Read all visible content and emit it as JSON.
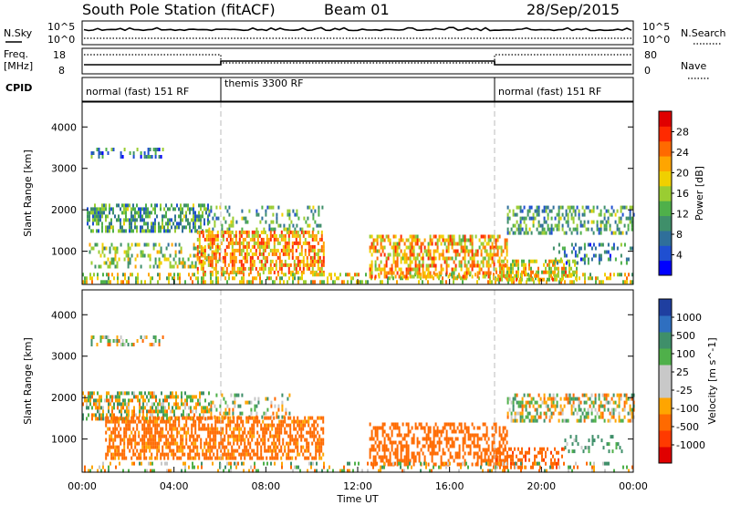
{
  "header": {
    "station": "South Pole Station (fitACF)",
    "beam": "Beam 01",
    "date": "28/Sep/2015"
  },
  "top_panel": {
    "nsky_label": "N.Sky",
    "nsearch_label": "N.Search",
    "noise_ticks": [
      "10^5",
      "10^0"
    ],
    "freq_label": "Freq.",
    "freq_unit": "[MHz]",
    "freq_ticks": [
      "18",
      "8"
    ],
    "nave_label": "Nave",
    "nave_ticks": [
      "80",
      "0"
    ],
    "cpid_label": "CPID",
    "modes": [
      {
        "label": "normal (fast) 151 RF",
        "start_h": 0,
        "end_h": 6
      },
      {
        "label": "themis 3300 RF",
        "start_h": 6,
        "end_h": 18
      },
      {
        "label": "normal (fast) 151 RF",
        "start_h": 18,
        "end_h": 24
      }
    ]
  },
  "x_axis": {
    "label": "Time UT",
    "ticks": [
      "00:00",
      "04:00",
      "08:00",
      "12:00",
      "16:00",
      "20:00",
      "00:00"
    ]
  },
  "chart_data": [
    {
      "type": "heatmap",
      "title": "",
      "xlabel": "Time UT",
      "ylabel": "Slant Range [km]",
      "xlim": [
        0,
        24
      ],
      "ylim": [
        200,
        4600
      ],
      "yticks": [
        1000,
        2000,
        3000,
        4000
      ],
      "colorbar": {
        "label": "Power [dB]",
        "ticks": [
          4,
          8,
          12,
          16,
          20,
          24,
          28
        ],
        "range": [
          0,
          32
        ],
        "colors": [
          "#0000ff",
          "#1f4fd1",
          "#2f6f9a",
          "#3f8f6a",
          "#4fb04a",
          "#9acd32",
          "#f0d000",
          "#ffa500",
          "#ff6a00",
          "#ff2a00",
          "#e00000"
        ]
      },
      "echo_regions": [
        {
          "t0": 0.3,
          "t1": 3.5,
          "r0": 3250,
          "r1": 3500,
          "level": 9,
          "density": 0.35
        },
        {
          "t0": 0.2,
          "t1": 5.5,
          "r0": 1500,
          "r1": 2150,
          "level": 11,
          "density": 0.55
        },
        {
          "t0": 5.5,
          "t1": 10.5,
          "r0": 1550,
          "r1": 2100,
          "level": 12,
          "density": 0.25
        },
        {
          "t0": 0.3,
          "t1": 6.0,
          "r0": 600,
          "r1": 1200,
          "level": 15,
          "density": 0.35
        },
        {
          "t0": 5.0,
          "t1": 10.5,
          "r0": 500,
          "r1": 1500,
          "level": 22,
          "density": 0.6
        },
        {
          "t0": 0.0,
          "t1": 24.0,
          "r0": 250,
          "r1": 480,
          "level": 18,
          "density": 0.35
        },
        {
          "t0": 12.5,
          "t1": 18.5,
          "r0": 350,
          "r1": 1400,
          "level": 21,
          "density": 0.55
        },
        {
          "t0": 18.0,
          "t1": 21.5,
          "r0": 280,
          "r1": 800,
          "level": 20,
          "density": 0.55
        },
        {
          "t0": 18.5,
          "t1": 24.0,
          "r0": 1400,
          "r1": 2100,
          "level": 11,
          "density": 0.45
        },
        {
          "t0": 20.5,
          "t1": 24.0,
          "r0": 700,
          "r1": 1200,
          "level": 9,
          "density": 0.25
        }
      ]
    },
    {
      "type": "heatmap",
      "title": "",
      "xlabel": "Time UT",
      "ylabel": "Slant Range [km]",
      "xlim": [
        0,
        24
      ],
      "ylim": [
        200,
        4600
      ],
      "yticks": [
        1000,
        2000,
        3000,
        4000
      ],
      "colorbar": {
        "label": "Velocity [m s^-1]",
        "ticks": [
          1000,
          500,
          100,
          25,
          -25,
          -100,
          -500,
          -1000
        ],
        "colors": [
          "#1f3fa0",
          "#2f6fc0",
          "#3f8f6a",
          "#4fb04a",
          "#c8c8c8",
          "#c8c8c8",
          "#ffa500",
          "#ff6a00",
          "#ff3a00",
          "#e00000"
        ]
      },
      "echo_regions": [
        {
          "t0": 0.3,
          "t1": 3.5,
          "r0": 3250,
          "r1": 3500,
          "vel": 0,
          "density": 0.35
        },
        {
          "t0": 0.0,
          "t1": 5.5,
          "r0": 1500,
          "r1": 2150,
          "vel": 5,
          "density": 0.55
        },
        {
          "t0": 5.5,
          "t1": 9.0,
          "r0": 1550,
          "r1": 2100,
          "vel": 10,
          "density": 0.25
        },
        {
          "t0": 1.0,
          "t1": 10.5,
          "r0": 550,
          "r1": 1550,
          "vel": -200,
          "density": 0.6
        },
        {
          "t0": 12.5,
          "t1": 18.5,
          "r0": 350,
          "r1": 1400,
          "vel": -250,
          "density": 0.5
        },
        {
          "t0": 18.0,
          "t1": 21.0,
          "r0": 280,
          "r1": 800,
          "vel": -400,
          "density": 0.45
        },
        {
          "t0": 18.5,
          "t1": 24.0,
          "r0": 1400,
          "r1": 2100,
          "vel": 0,
          "density": 0.45
        },
        {
          "t0": 21.0,
          "t1": 23.5,
          "r0": 700,
          "r1": 1100,
          "vel": 150,
          "density": 0.25
        },
        {
          "t0": 0.0,
          "t1": 24.0,
          "r0": 250,
          "r1": 450,
          "vel": 0,
          "density": 0.25
        }
      ]
    }
  ]
}
